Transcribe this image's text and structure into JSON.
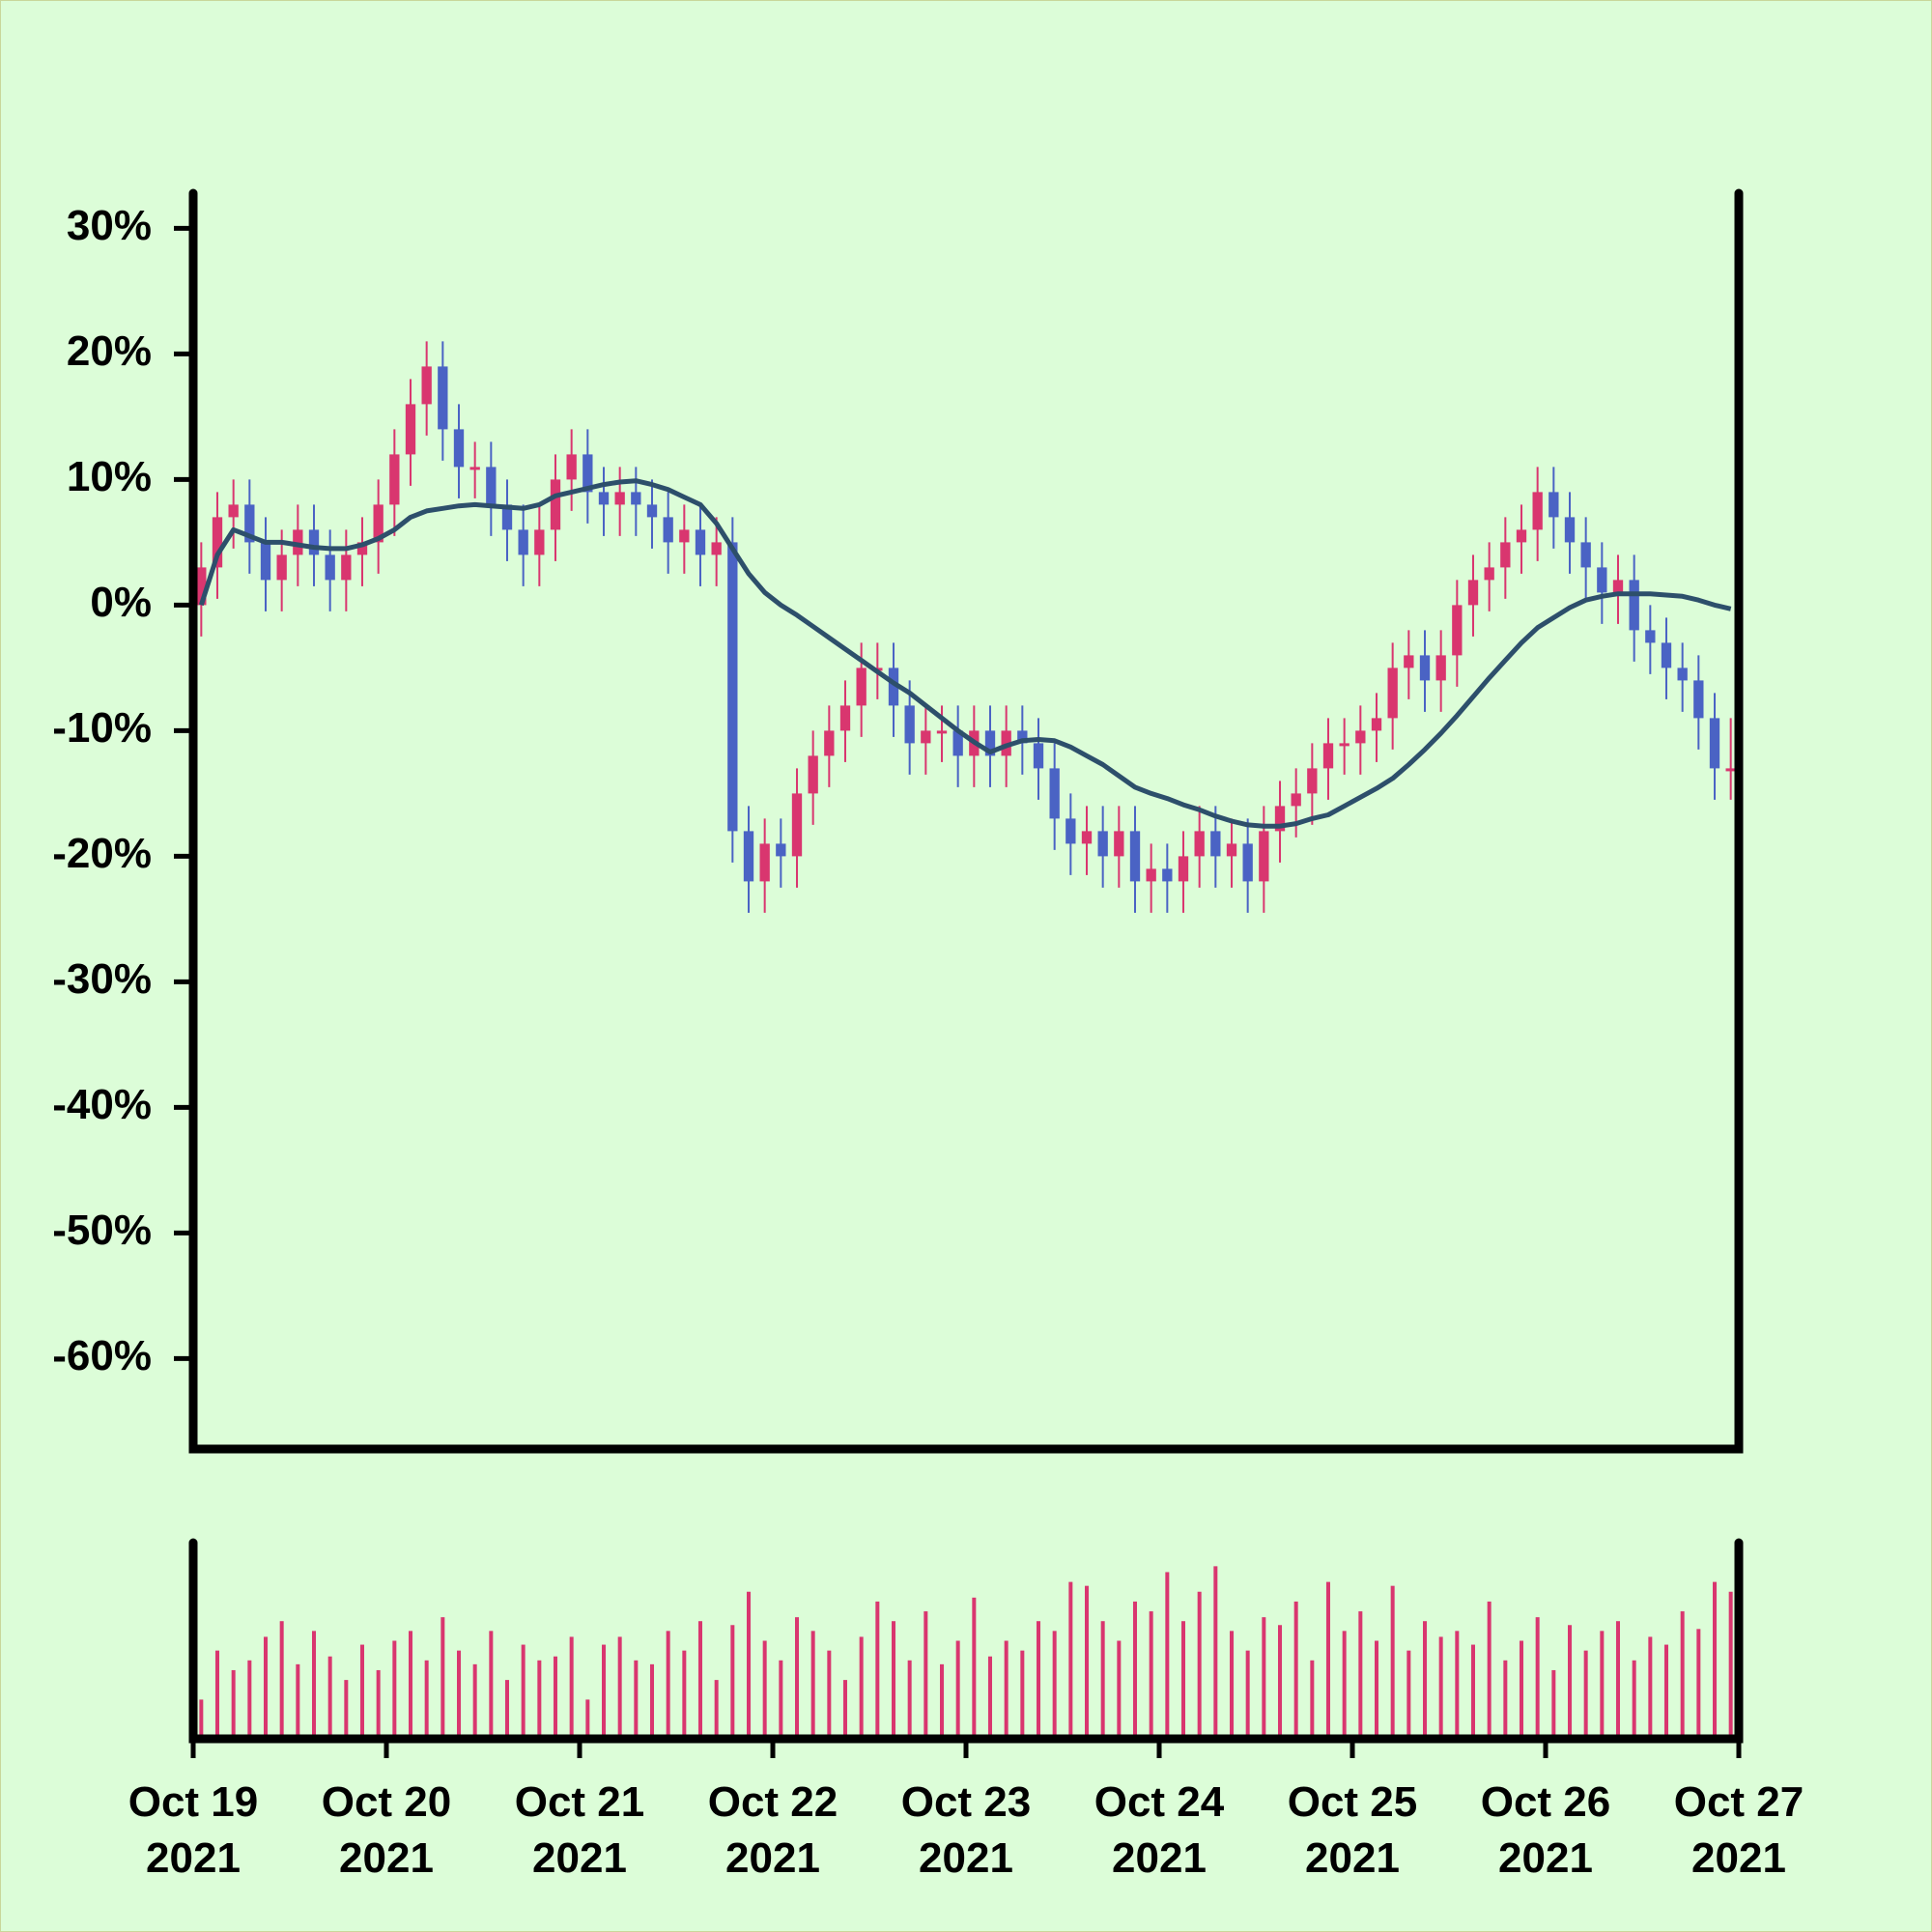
{
  "chart_data": {
    "type": "candlestick",
    "up_color": "#d9366f",
    "down_color": "#4a63c4",
    "volume_color": "#d9366f",
    "x": [
      "2021-10-19T00:00",
      "2021-10-19T02:00",
      "2021-10-19T04:00",
      "2021-10-19T06:00",
      "2021-10-19T08:00",
      "2021-10-19T10:00",
      "2021-10-19T12:00",
      "2021-10-19T14:00",
      "2021-10-19T16:00",
      "2021-10-19T18:00",
      "2021-10-19T20:00",
      "2021-10-19T22:00",
      "2021-10-20T00:00",
      "2021-10-20T02:00",
      "2021-10-20T04:00",
      "2021-10-20T06:00",
      "2021-10-20T08:00",
      "2021-10-20T10:00",
      "2021-10-20T12:00",
      "2021-10-20T14:00",
      "2021-10-20T16:00",
      "2021-10-20T18:00",
      "2021-10-20T20:00",
      "2021-10-20T22:00",
      "2021-10-21T00:00",
      "2021-10-21T02:00",
      "2021-10-21T04:00",
      "2021-10-21T06:00",
      "2021-10-21T08:00",
      "2021-10-21T10:00",
      "2021-10-21T12:00",
      "2021-10-21T14:00",
      "2021-10-21T16:00",
      "2021-10-21T18:00",
      "2021-10-21T20:00",
      "2021-10-21T22:00",
      "2021-10-22T00:00",
      "2021-10-22T02:00",
      "2021-10-22T04:00",
      "2021-10-22T06:00",
      "2021-10-22T08:00",
      "2021-10-22T10:00",
      "2021-10-22T12:00",
      "2021-10-22T14:00",
      "2021-10-22T16:00",
      "2021-10-22T18:00",
      "2021-10-22T20:00",
      "2021-10-22T22:00",
      "2021-10-23T00:00",
      "2021-10-23T02:00",
      "2021-10-23T04:00",
      "2021-10-23T06:00",
      "2021-10-23T08:00",
      "2021-10-23T10:00",
      "2021-10-23T12:00",
      "2021-10-23T14:00",
      "2021-10-23T16:00",
      "2021-10-23T18:00",
      "2021-10-23T20:00",
      "2021-10-23T22:00",
      "2021-10-24T00:00",
      "2021-10-24T02:00",
      "2021-10-24T04:00",
      "2021-10-24T06:00",
      "2021-10-24T08:00",
      "2021-10-24T10:00",
      "2021-10-24T12:00",
      "2021-10-24T14:00",
      "2021-10-24T16:00",
      "2021-10-24T18:00",
      "2021-10-24T20:00",
      "2021-10-24T22:00",
      "2021-10-25T00:00",
      "2021-10-25T02:00",
      "2021-10-25T04:00",
      "2021-10-25T06:00",
      "2021-10-25T08:00",
      "2021-10-25T10:00",
      "2021-10-25T12:00",
      "2021-10-25T14:00",
      "2021-10-25T16:00",
      "2021-10-25T18:00",
      "2021-10-25T20:00",
      "2021-10-25T22:00",
      "2021-10-26T00:00",
      "2021-10-26T02:00",
      "2021-10-26T04:00",
      "2021-10-26T06:00",
      "2021-10-26T08:00",
      "2021-10-26T10:00",
      "2021-10-26T12:00",
      "2021-10-26T14:00",
      "2021-10-26T16:00",
      "2021-10-26T18:00",
      "2021-10-26T20:00",
      "2021-10-26T22:00"
    ],
    "open": [
      0,
      3,
      7,
      8,
      5,
      2,
      4,
      6,
      4,
      2,
      4,
      5,
      8,
      12,
      16,
      19,
      14,
      11,
      11,
      8,
      6,
      4,
      6,
      10,
      12,
      9,
      8,
      9,
      8,
      7,
      5,
      6,
      4,
      5,
      -18,
      -22,
      -19,
      -20,
      -15,
      -12,
      -10,
      -8,
      -5,
      -5,
      -8,
      -11,
      -10,
      -10,
      -12,
      -10,
      -12,
      -10,
      -11,
      -13,
      -17,
      -19,
      -18,
      -20,
      -18,
      -22,
      -21,
      -22,
      -20,
      -18,
      -20,
      -19,
      -22,
      -18,
      -16,
      -15,
      -13,
      -11,
      -11,
      -10,
      -9,
      -5,
      -4,
      -6,
      -4,
      0,
      2,
      3,
      5,
      6,
      9,
      7,
      5,
      3,
      1,
      2,
      -2,
      -3,
      -5,
      -6,
      -9,
      -13
    ],
    "high": [
      5,
      9,
      10,
      10,
      7,
      6,
      8,
      8,
      6,
      6,
      7,
      10,
      14,
      18,
      21,
      21,
      16,
      13,
      13,
      10,
      8,
      8,
      12,
      14,
      14,
      11,
      11,
      11,
      10,
      9,
      8,
      8,
      7,
      7,
      -16,
      -17,
      -17,
      -13,
      -10,
      -8,
      -6,
      -3,
      -3,
      -3,
      -6,
      -8,
      -8,
      -8,
      -8,
      -8,
      -8,
      -8,
      -9,
      -11,
      -15,
      -16,
      -16,
      -16,
      -16,
      -19,
      -19,
      -18,
      -16,
      -16,
      -17,
      -17,
      -16,
      -14,
      -13,
      -11,
      -9,
      -9,
      -8,
      -7,
      -3,
      -2,
      -2,
      -2,
      2,
      4,
      5,
      7,
      8,
      11,
      11,
      9,
      7,
      5,
      4,
      4,
      0,
      -1,
      -3,
      -4,
      -7,
      -9
    ],
    "low": [
      -2.5,
      0.5,
      4.5,
      2.5,
      -0.5,
      -0.5,
      1.5,
      1.5,
      -0.5,
      -0.5,
      1.5,
      2.5,
      5.5,
      9.5,
      13.5,
      11.5,
      8.5,
      8.5,
      5.5,
      3.5,
      1.5,
      1.5,
      3.5,
      7.5,
      6.5,
      5.5,
      5.5,
      5.5,
      4.5,
      2.5,
      2.5,
      1.5,
      1.5,
      -20.5,
      -24.5,
      -24.5,
      -22.5,
      -22.5,
      -17.5,
      -14.5,
      -12.5,
      -10.5,
      -7.5,
      -10.5,
      -13.5,
      -13.5,
      -12.5,
      -14.5,
      -14.5,
      -14.5,
      -14.5,
      -13.5,
      -15.5,
      -19.5,
      -21.5,
      -21.5,
      -22.5,
      -22.5,
      -24.5,
      -24.5,
      -24.5,
      -24.5,
      -22.5,
      -22.5,
      -22.5,
      -24.5,
      -24.5,
      -20.5,
      -18.5,
      -17.5,
      -15.5,
      -13.5,
      -13.5,
      -12.5,
      -11.5,
      -7.5,
      -8.5,
      -8.5,
      -6.5,
      -2.5,
      -0.5,
      0.5,
      2.5,
      3.5,
      4.5,
      2.5,
      0.5,
      -1.5,
      -1.5,
      -4.5,
      -5.5,
      -7.5,
      -8.5,
      -11.5,
      -15.5,
      -15.5
    ],
    "close": [
      3,
      7,
      8,
      5,
      2,
      4,
      6,
      4,
      2,
      4,
      5,
      8,
      12,
      16,
      19,
      14,
      11,
      11,
      8,
      6,
      4,
      6,
      10,
      12,
      9,
      8,
      9,
      8,
      7,
      5,
      6,
      4,
      5,
      -18,
      -22,
      -19,
      -20,
      -15,
      -12,
      -10,
      -8,
      -5,
      -5,
      -8,
      -11,
      -10,
      -10,
      -12,
      -10,
      -12,
      -10,
      -11,
      -13,
      -17,
      -19,
      -18,
      -20,
      -18,
      -22,
      -21,
      -22,
      -20,
      -18,
      -20,
      -19,
      -22,
      -18,
      -16,
      -15,
      -13,
      -11,
      -11,
      -10,
      -9,
      -5,
      -4,
      -6,
      -4,
      0,
      2,
      3,
      5,
      6,
      9,
      7,
      5,
      3,
      1,
      2,
      -2,
      -3,
      -5,
      -6,
      -9,
      -13,
      -13
    ],
    "volume": [
      20,
      45,
      35,
      40,
      52,
      60,
      38,
      55,
      42,
      30,
      48,
      35,
      50,
      55,
      40,
      62,
      45,
      38,
      55,
      30,
      48,
      40,
      42,
      52,
      20,
      48,
      52,
      40,
      38,
      55,
      45,
      60,
      30,
      58,
      75,
      50,
      40,
      62,
      55,
      45,
      30,
      52,
      70,
      60,
      40,
      65,
      38,
      50,
      72,
      42,
      50,
      45,
      60,
      55,
      80,
      78,
      60,
      50,
      70,
      65,
      85,
      60,
      75,
      88,
      55,
      45,
      62,
      58,
      70,
      40,
      80,
      55,
      65,
      50,
      78,
      45,
      60,
      52,
      55,
      48,
      70,
      40,
      50,
      62,
      35,
      58,
      45,
      55,
      60,
      40,
      52,
      48,
      65,
      56,
      80,
      75
    ],
    "y2lim": [
      0,
      100
    ],
    "ma": {
      "color": "#2d4f6b",
      "values": [
        0,
        4,
        6,
        5.5,
        5,
        5,
        4.8,
        4.6,
        4.5,
        4.5,
        4.8,
        5.3,
        6,
        7,
        7.5,
        7.7,
        7.9,
        8,
        7.9,
        7.8,
        7.7,
        8,
        8.7,
        9,
        9.3,
        9.6,
        9.8,
        9.9,
        9.6,
        9.2,
        8.6,
        8,
        6.5,
        4.5,
        2.5,
        1,
        0,
        -0.8,
        -1.7,
        -2.6,
        -3.5,
        -4.4,
        -5.3,
        -6.2,
        -7,
        -8,
        -9,
        -10,
        -10.9,
        -11.7,
        -11.2,
        -10.8,
        -10.7,
        -10.8,
        -11.3,
        -12,
        -12.7,
        -13.6,
        -14.5,
        -15,
        -15.4,
        -15.9,
        -16.3,
        -16.8,
        -17.2,
        -17.5,
        -17.6,
        -17.6,
        -17.4,
        -17,
        -16.7,
        -16,
        -15.3,
        -14.6,
        -13.8,
        -12.7,
        -11.5,
        -10.2,
        -8.8,
        -7.3,
        -5.8,
        -4.4,
        -3,
        -1.8,
        -1,
        -0.2,
        0.4,
        0.7,
        0.9,
        0.9,
        0.9,
        0.8,
        0.7,
        0.4,
        0,
        -0.3
      ]
    },
    "xlim": [
      "2021-10-19T00:00",
      "2021-10-27T00:00"
    ],
    "xticks": [
      {
        "value": "2021-10-19T00:00",
        "label": "Oct 19\n2021"
      },
      {
        "value": "2021-10-20T00:00",
        "label": "Oct 20\n2021"
      },
      {
        "value": "2021-10-21T00:00",
        "label": "Oct 21\n2021"
      },
      {
        "value": "2021-10-22T00:00",
        "label": "Oct 22\n2021"
      },
      {
        "value": "2021-10-23T00:00",
        "label": "Oct 23\n2021"
      },
      {
        "value": "2021-10-24T00:00",
        "label": "Oct 24\n2021"
      },
      {
        "value": "2021-10-25T00:00",
        "label": "Oct 25\n2021"
      },
      {
        "value": "2021-10-26T00:00",
        "label": "Oct 26\n2021"
      },
      {
        "value": "2021-10-27T00:00",
        "label": "Oct 27\n2021"
      }
    ],
    "ylim": [
      -67.2,
      32.8
    ],
    "yticks": [
      {
        "value": 30,
        "label": "30%"
      },
      {
        "value": 20,
        "label": "20%"
      },
      {
        "value": 10,
        "label": "10%"
      },
      {
        "value": 0,
        "label": "0%"
      },
      {
        "value": -10,
        "label": "-10%"
      },
      {
        "value": -20,
        "label": "-20%"
      },
      {
        "value": -30,
        "label": "-30%"
      },
      {
        "value": -40,
        "label": "-40%"
      },
      {
        "value": -50,
        "label": "-50%"
      },
      {
        "value": -60,
        "label": "-60%"
      }
    ]
  }
}
